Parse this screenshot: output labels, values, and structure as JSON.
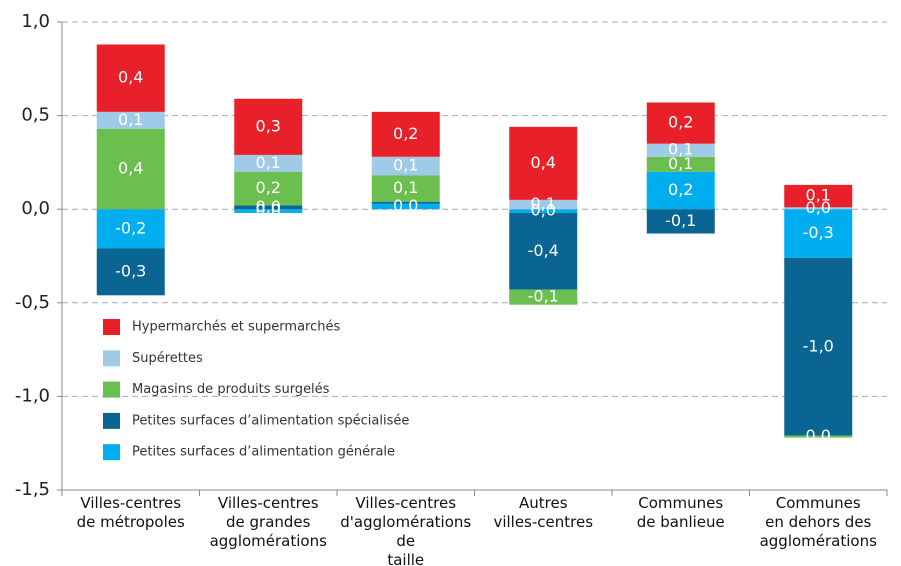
{
  "chart_data": {
    "type": "stacked_bar",
    "categories": [
      "Villes-centres\nde métropoles",
      "Villes-centres\nde grandes\nagglomérations",
      "Villes-centres\nd'agglomérations de\ntaille intermédiaire",
      "Autres\nvilles-centres",
      "Communes\nde banlieue",
      "Communes\nen dehors des\nagglomérations"
    ],
    "series": [
      {
        "name": "Petites surfaces d’alimentation générale",
        "color": "#00adef",
        "values": [
          -0.21,
          -0.02,
          0.03,
          -0.02,
          0.2,
          -0.26
        ],
        "value_labels": [
          "-0,2",
          "0,0",
          "0,0",
          "0,0",
          "0,2",
          "-0,3"
        ]
      },
      {
        "name": "Petites surfaces d’alimentation spécialisée",
        "color": "#0a6592",
        "values": [
          -0.25,
          0.02,
          0.01,
          -0.41,
          -0.13,
          -0.95
        ],
        "value_labels": [
          "-0,3",
          "0,0",
          null,
          "-0,4",
          "-0,1",
          "-1,0"
        ]
      },
      {
        "name": "Magasins de produits surgelés",
        "color": "#6bbf4e",
        "values": [
          0.43,
          0.18,
          0.14,
          -0.08,
          0.08,
          -0.01
        ],
        "value_labels": [
          "0,4",
          "0,2",
          "0,1",
          "-0,1",
          "0,1",
          "0,0"
        ]
      },
      {
        "name": "Supérettes",
        "color": "#9fcbe8",
        "values": [
          0.09,
          0.09,
          0.1,
          0.05,
          0.07,
          0.01
        ],
        "value_labels": [
          "0,1",
          "0,1",
          "0,1",
          "0,1",
          "0,1",
          "0,0"
        ]
      },
      {
        "name": "Hypermarchés et supermarchés",
        "color": "#e8202a",
        "values": [
          0.36,
          0.3,
          0.24,
          0.39,
          0.22,
          0.12
        ],
        "value_labels": [
          "0,4",
          "0,3",
          "0,2",
          "0,4",
          "0,2",
          "0,1"
        ]
      }
    ],
    "ylim": [
      -1.5,
      1.0
    ],
    "yticks": [
      {
        "value": -1.5,
        "label": "-1,5"
      },
      {
        "value": -1.0,
        "label": "-1,0"
      },
      {
        "value": -0.5,
        "label": "-0,5"
      },
      {
        "value": 0.0,
        "label": "0,0"
      },
      {
        "value": 0.5,
        "label": "0,5"
      },
      {
        "value": 1.0,
        "label": "1,0"
      }
    ],
    "grid": true
  }
}
